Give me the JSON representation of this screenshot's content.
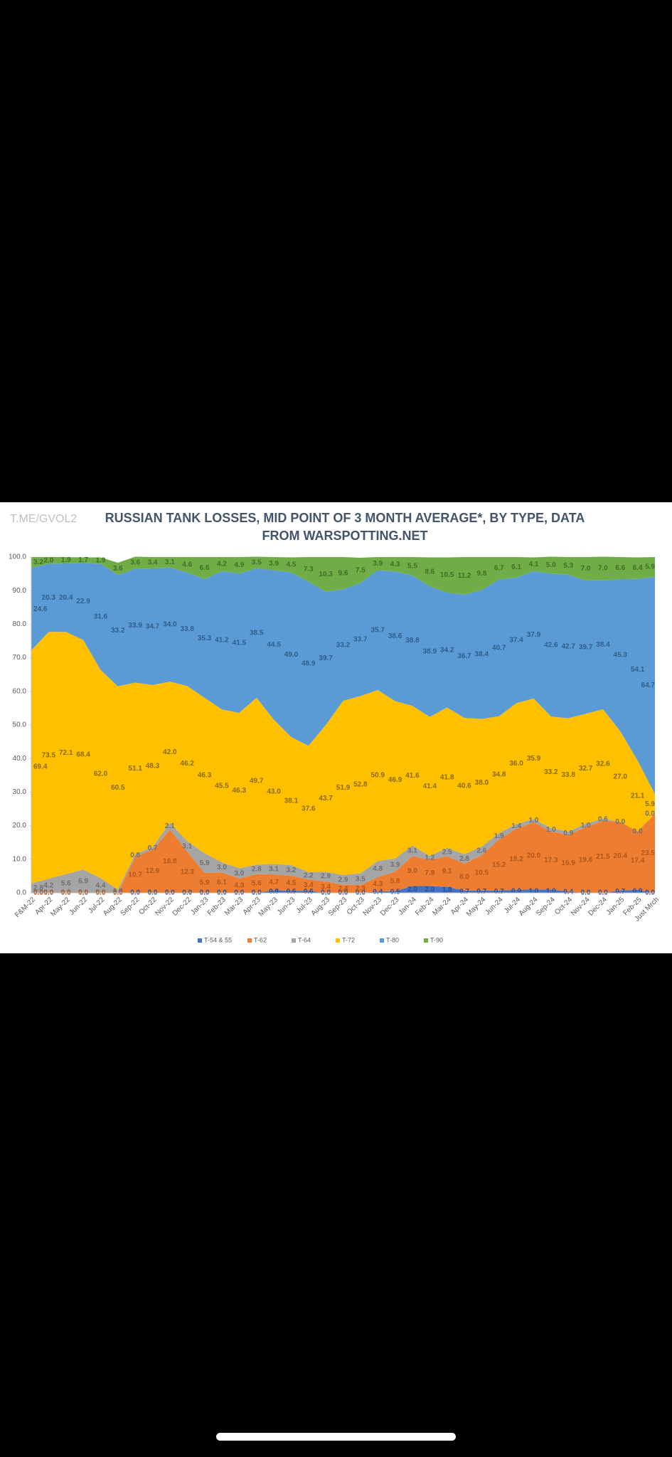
{
  "watermark": "T.ME/GVOL2",
  "chart_data": {
    "type": "stacked-area",
    "title": "RUSSIAN TANK LOSSES, MID POINT OF 3 MONTH AVERAGE*, BY TYPE, DATA FROM WARSPOTTING.NET",
    "categories": [
      "F&M-22",
      "Apr-22",
      "May-22",
      "Jun-22",
      "Jul-22",
      "Aug-22",
      "Sep-22",
      "Oct-22",
      "Nov-22",
      "Dec-22",
      "Jan-23",
      "Feb-23",
      "Mar-23",
      "Apr-23",
      "May-23",
      "Jun-23",
      "Jul-23",
      "Aug-23",
      "Sep-23",
      "Oct-23",
      "Nov-23",
      "Dec-23",
      "Jan-24",
      "Feb-24",
      "Mar-24",
      "Apr-24",
      "May-24",
      "Jun-24",
      "Jul-24",
      "Aug-24",
      "Sep-24",
      "Oct-24",
      "Nov-24",
      "Dec-24",
      "Jan-25",
      "Feb-25",
      "Just Mrch"
    ],
    "ylim": [
      0,
      100
    ],
    "yticks": [
      {
        "value": 0,
        "label": "0.0"
      },
      {
        "value": 10,
        "label": "10.0"
      },
      {
        "value": 20,
        "label": "20.0"
      },
      {
        "value": 30,
        "label": "30.0"
      },
      {
        "value": 40,
        "label": "40.0"
      },
      {
        "value": 50,
        "label": "50.0"
      },
      {
        "value": 60,
        "label": "60.0"
      },
      {
        "value": 70,
        "label": "70.0"
      },
      {
        "value": 80,
        "label": "80.0"
      },
      {
        "value": 90,
        "label": "90.0"
      },
      {
        "value": 100,
        "label": "100.0"
      }
    ],
    "grid": false,
    "legend": "bottom",
    "series": [
      {
        "name": "T-54 & 55",
        "color": "#4472c4",
        "values": [
          0,
          0,
          0,
          0,
          0,
          0,
          0,
          0,
          0,
          0,
          0,
          0,
          0,
          0,
          0.8,
          0.6,
          0.6,
          0,
          0,
          0,
          0.4,
          0.5,
          2.0,
          2.0,
          1.8,
          0.7,
          0.7,
          0.7,
          0.9,
          1.0,
          1.0,
          0.4,
          0,
          0,
          0.7,
          0.9,
          0
        ],
        "value_labels": [
          "0.0",
          "0.0",
          "0.0",
          "0.0",
          "0.0",
          "0.0",
          "0.0",
          "0.0",
          "0.0",
          "0.0",
          "0.0",
          "0.0",
          "0.0",
          "0.0",
          "0.8",
          "0.6",
          "0.6",
          "0.0",
          "0.0",
          "0.0",
          "0.4",
          "0.5",
          "2.0",
          "2.0",
          "1.8",
          "0.7",
          "0.7",
          "0.7",
          "0.9",
          "1.0",
          "1.0",
          "0.4",
          "0.0",
          "0.0",
          "0.7",
          "0.9",
          "0.0"
        ]
      },
      {
        "name": "T-62",
        "color": "#ed7d31",
        "values": [
          0,
          0,
          0,
          0,
          0,
          0,
          10.7,
          12.9,
          18.8,
          12.3,
          5.9,
          6.1,
          4.3,
          5.6,
          4.7,
          4.5,
          3.4,
          3.4,
          2.4,
          2.3,
          4.3,
          5.8,
          9.0,
          7.8,
          9.1,
          8.0,
          10.5,
          15.2,
          18.2,
          20.0,
          17.3,
          16.9,
          19.6,
          21.5,
          20.4,
          17.4,
          23.5
        ],
        "value_labels": [
          "0.0",
          "0.0",
          "0.0",
          "0.0",
          "0.0",
          "0.0",
          "10.7",
          "12.9",
          "18.8",
          "12.3",
          "5.9",
          "6.1",
          "4.3",
          "5.6",
          "4.7",
          "4.5",
          "3.4",
          "3.4",
          "2.4",
          "2.3",
          "4.3",
          "5.8",
          "9.0",
          "7.8",
          "9.1",
          "8.0",
          "10.5",
          "15.2",
          "18.2",
          "20.0",
          "17.3",
          "16.9",
          "19.6",
          "21.5",
          "20.4",
          "17.4",
          "23.5"
        ]
      },
      {
        "name": "T-64",
        "color": "#a5a5a5",
        "values": [
          2.8,
          4.2,
          5.6,
          6.9,
          4.4,
          1.0,
          0.8,
          0.7,
          2.1,
          3.1,
          5.9,
          3.0,
          3.0,
          2.8,
          3.1,
          3.2,
          2.2,
          2.9,
          2.9,
          3.5,
          4.8,
          3.9,
          3.1,
          1.2,
          2.5,
          2.8,
          2.6,
          1.9,
          1.4,
          1.0,
          1.0,
          0.9,
          1.0,
          0.6,
          0,
          0,
          0
        ],
        "value_labels": [
          "2.8",
          "4.2",
          "5.6",
          "6.9",
          "4.4",
          "1.0",
          "0.8",
          "0.7",
          "2.1",
          "3.1",
          "5.9",
          "3.0",
          "3.0",
          "2.8",
          "3.1",
          "3.2",
          "2.2",
          "2.9",
          "2.9",
          "3.5",
          "4.8",
          "3.9",
          "3.1",
          "1.2",
          "2.5",
          "2.8",
          "2.6",
          "1.9",
          "1.4",
          "1.0",
          "1.0",
          "0.9",
          "1.0",
          "0.6",
          "0.0",
          "0.0",
          "0.0"
        ]
      },
      {
        "name": "T-72",
        "color": "#ffc000",
        "values": [
          69.4,
          73.5,
          72.1,
          68.4,
          62.0,
          60.5,
          51.1,
          48.3,
          42.0,
          46.2,
          46.3,
          45.5,
          46.3,
          49.7,
          43.0,
          38.1,
          37.6,
          43.7,
          51.9,
          52.8,
          50.9,
          46.9,
          41.6,
          41.4,
          41.8,
          40.6,
          38.0,
          34.8,
          36.0,
          35.9,
          33.2,
          33.8,
          32.7,
          32.6,
          27.0,
          21.1,
          5.9
        ],
        "value_labels": [
          "69.4",
          "73.5",
          "72.1",
          "68.4",
          "62.0",
          "60.5",
          "51.1",
          "48.3",
          "42.0",
          "46.2",
          "46.3",
          "45.5",
          "46.3",
          "49.7",
          "43.0",
          "38.1",
          "37.6",
          "43.7",
          "51.9",
          "52.8",
          "50.9",
          "46.9",
          "41.6",
          "41.4",
          "41.8",
          "40.6",
          "38.0",
          "34.8",
          "36.0",
          "35.9",
          "33.2",
          "33.8",
          "32.7",
          "32.6",
          "27.0",
          "21.1",
          "5.9"
        ]
      },
      {
        "name": "T-80",
        "color": "#5b9bd5",
        "values": [
          24.6,
          20.3,
          20.4,
          22.9,
          31.6,
          33.2,
          33.9,
          34.7,
          34.0,
          33.8,
          35.3,
          41.2,
          41.5,
          38.5,
          44.5,
          49.0,
          48.9,
          39.7,
          33.2,
          33.7,
          35.7,
          38.6,
          38.8,
          38.9,
          34.2,
          36.7,
          38.4,
          40.7,
          37.4,
          37.9,
          42.6,
          42.7,
          39.7,
          38.4,
          45.3,
          54.1,
          64.7
        ],
        "value_labels": [
          "24.6",
          "20.3",
          "20.4",
          "22.9",
          "31.6",
          "33.2",
          "33.9",
          "34.7",
          "34.0",
          "33.8",
          "35.3",
          "41.2",
          "41.5",
          "38.5",
          "44.5",
          "49.0",
          "48.9",
          "39.7",
          "33.2",
          "33.7",
          "35.7",
          "38.6",
          "38.8",
          "38.9",
          "34.2",
          "36.7",
          "38.4",
          "40.7",
          "37.4",
          "37.9",
          "42.6",
          "42.7",
          "39.7",
          "38.4",
          "45.3",
          "54.1",
          "64.7"
        ]
      },
      {
        "name": "T-90",
        "color": "#70ad47",
        "values": [
          3.2,
          2.0,
          1.9,
          1.7,
          1.9,
          3.6,
          3.6,
          3.4,
          3.1,
          4.6,
          6.6,
          4.2,
          4.9,
          3.5,
          3.9,
          4.5,
          7.3,
          10.3,
          9.6,
          7.5,
          3.9,
          4.3,
          5.5,
          8.6,
          10.5,
          11.2,
          9.8,
          6.7,
          6.1,
          4.1,
          5.0,
          5.3,
          7.0,
          7.0,
          6.6,
          6.4,
          5.9
        ],
        "value_labels": [
          "3.2",
          "2.0",
          "1.9",
          "1.7",
          "1.9",
          "3.6",
          "3.6",
          "3.4",
          "3.1",
          "4.6",
          "6.6",
          "4.2",
          "4.9",
          "3.5",
          "3.9",
          "4.5",
          "7.3",
          "10.3",
          "9.6",
          "7.5",
          "3.9",
          "4.3",
          "5.5",
          "8.6",
          "10.5",
          "11.2",
          "9.8",
          "6.7",
          "6.1",
          "4.1",
          "5.0",
          "5.3",
          "7.0",
          "7.0",
          "6.6",
          "6.4",
          "5.9"
        ]
      }
    ]
  }
}
